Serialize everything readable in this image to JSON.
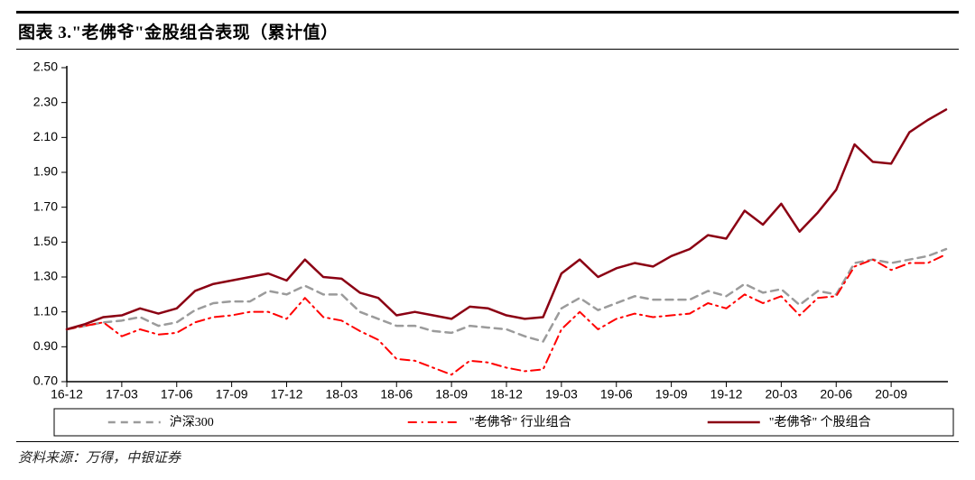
{
  "title": "图表 3.\"老佛爷\"金股组合表现（累计值）",
  "source": "资料来源：万得，中银证券",
  "chart": {
    "type": "line",
    "background_color": "#ffffff",
    "axis_color": "#000000",
    "tick_color": "#000000",
    "tick_length": 6,
    "axis_line_width": 1.5,
    "yaxis": {
      "min": 0.7,
      "max": 2.5,
      "tick_step": 0.2,
      "ticks": [
        "0.70",
        "0.90",
        "1.10",
        "1.30",
        "1.50",
        "1.70",
        "1.90",
        "2.10",
        "2.30",
        "2.50"
      ],
      "label_fontsize": 14
    },
    "xaxis": {
      "labels": [
        "16-12",
        "17-03",
        "17-06",
        "17-09",
        "17-12",
        "18-03",
        "18-06",
        "18-09",
        "18-12",
        "19-03",
        "19-06",
        "19-09",
        "19-12",
        "20-03",
        "20-06",
        "20-09"
      ],
      "label_fontsize": 14,
      "n_points": 49
    },
    "series": [
      {
        "name": "沪深300",
        "legend_label": "沪深300",
        "color": "#9b9b9b",
        "line_width": 2.5,
        "dash": "8,6",
        "marker": "none",
        "y": [
          1.0,
          1.02,
          1.04,
          1.05,
          1.07,
          1.02,
          1.04,
          1.11,
          1.15,
          1.16,
          1.16,
          1.22,
          1.2,
          1.25,
          1.2,
          1.2,
          1.1,
          1.06,
          1.02,
          1.02,
          0.99,
          0.98,
          1.02,
          1.01,
          1.0,
          0.96,
          0.93,
          1.12,
          1.18,
          1.11,
          1.15,
          1.19,
          1.17,
          1.17,
          1.17,
          1.22,
          1.19,
          1.26,
          1.21,
          1.23,
          1.14,
          1.22,
          1.2,
          1.38,
          1.4,
          1.38,
          1.4,
          1.42,
          1.46
        ]
      },
      {
        "name": "\"老佛爷\" 行业组合",
        "legend_label": "\"老佛爷\" 行业组合",
        "color": "#ff0000",
        "line_width": 2,
        "dash": "10,5,2,5",
        "marker": "none",
        "y": [
          1.0,
          1.02,
          1.04,
          0.96,
          1.0,
          0.97,
          0.98,
          1.04,
          1.07,
          1.08,
          1.1,
          1.1,
          1.06,
          1.18,
          1.07,
          1.05,
          0.99,
          0.94,
          0.83,
          0.82,
          0.78,
          0.74,
          0.82,
          0.81,
          0.78,
          0.76,
          0.77,
          1.0,
          1.1,
          1.0,
          1.06,
          1.09,
          1.07,
          1.08,
          1.09,
          1.15,
          1.12,
          1.2,
          1.15,
          1.19,
          1.08,
          1.18,
          1.19,
          1.36,
          1.4,
          1.34,
          1.38,
          1.38,
          1.43
        ]
      },
      {
        "name": "\"老佛爷\" 个股组合",
        "legend_label": "\"老佛爷\" 个股组合",
        "color": "#8b0013",
        "line_width": 2.5,
        "dash": "none",
        "marker": "none",
        "y": [
          1.0,
          1.03,
          1.07,
          1.08,
          1.12,
          1.09,
          1.12,
          1.22,
          1.26,
          1.28,
          1.3,
          1.32,
          1.28,
          1.4,
          1.3,
          1.29,
          1.21,
          1.18,
          1.08,
          1.1,
          1.08,
          1.06,
          1.13,
          1.12,
          1.08,
          1.06,
          1.07,
          1.32,
          1.4,
          1.3,
          1.35,
          1.38,
          1.36,
          1.42,
          1.46,
          1.54,
          1.52,
          1.68,
          1.6,
          1.72,
          1.56,
          1.67,
          1.8,
          2.06,
          1.96,
          1.95,
          2.13,
          2.2,
          2.26
        ]
      }
    ],
    "legend": {
      "position": "bottom",
      "box_border_color": "#000000",
      "box_border_width": 1,
      "fontsize": 14
    }
  }
}
